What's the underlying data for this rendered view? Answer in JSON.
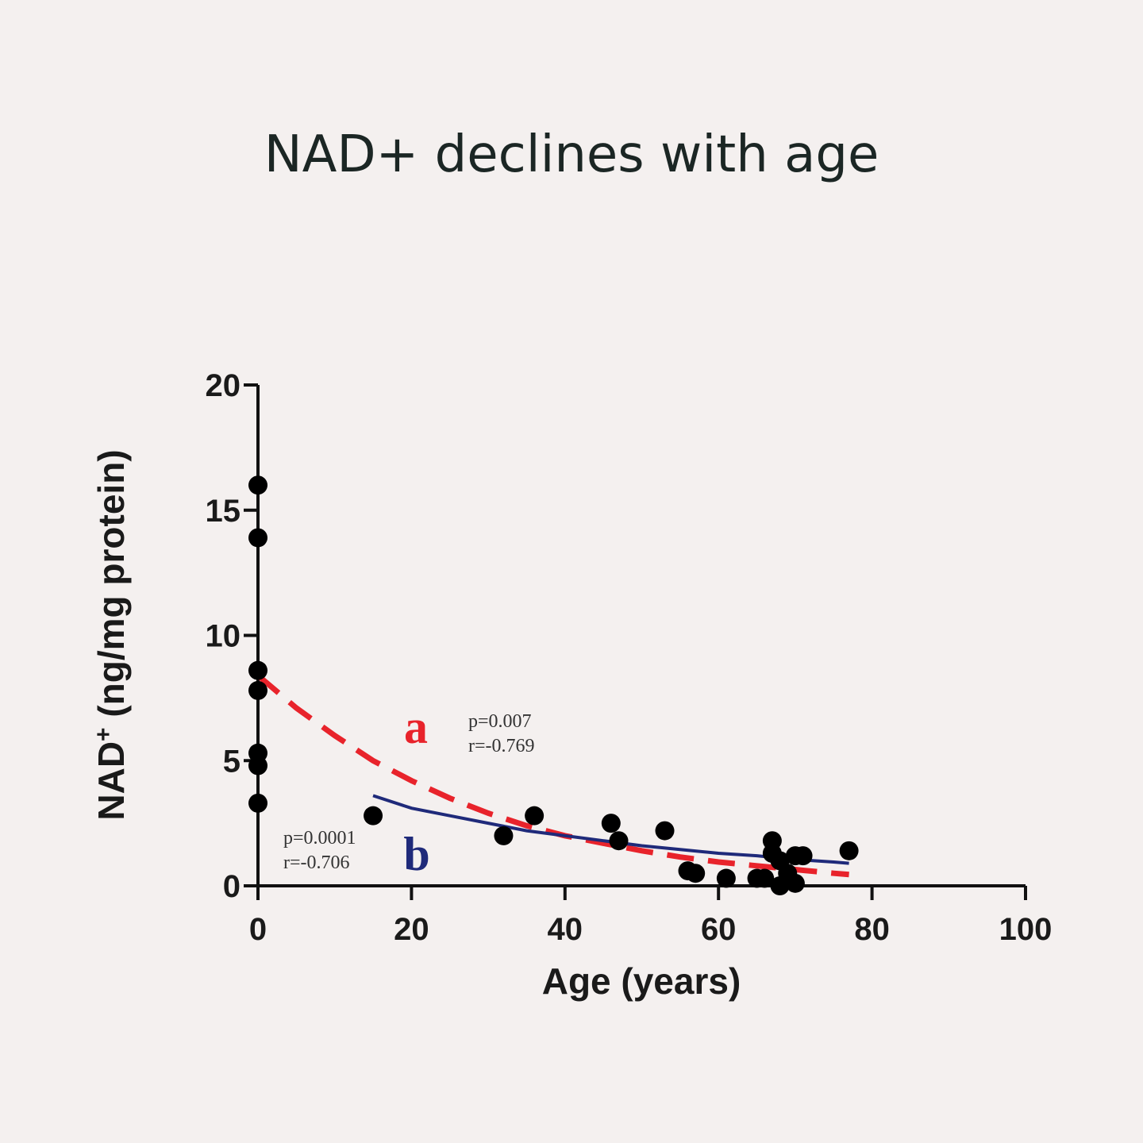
{
  "title": "NAD+ declines with age",
  "chart_data": {
    "type": "scatter",
    "xlabel": "Age (years)",
    "ylabel_main": "NAD",
    "ylabel_sup": "+",
    "ylabel_rest": " (ng/mg protein)",
    "xlim": [
      0,
      100
    ],
    "ylim": [
      0,
      20
    ],
    "xticks": [
      0,
      20,
      40,
      60,
      80,
      100
    ],
    "yticks": [
      0,
      5,
      10,
      15,
      20
    ],
    "grid": false,
    "points": [
      {
        "x": 0,
        "y": 16.0
      },
      {
        "x": 0,
        "y": 13.9
      },
      {
        "x": 0,
        "y": 8.6
      },
      {
        "x": 0,
        "y": 7.8
      },
      {
        "x": 0,
        "y": 5.3
      },
      {
        "x": 0,
        "y": 4.8
      },
      {
        "x": 0,
        "y": 3.3
      },
      {
        "x": 15,
        "y": 2.8
      },
      {
        "x": 32,
        "y": 2.0
      },
      {
        "x": 36,
        "y": 2.8
      },
      {
        "x": 46,
        "y": 2.5
      },
      {
        "x": 47,
        "y": 1.8
      },
      {
        "x": 53,
        "y": 2.2
      },
      {
        "x": 56,
        "y": 0.6
      },
      {
        "x": 57,
        "y": 0.5
      },
      {
        "x": 61,
        "y": 0.3
      },
      {
        "x": 65,
        "y": 0.3
      },
      {
        "x": 66,
        "y": 0.3
      },
      {
        "x": 67,
        "y": 1.8
      },
      {
        "x": 67,
        "y": 1.3
      },
      {
        "x": 68,
        "y": 0.0
      },
      {
        "x": 68,
        "y": 1.0
      },
      {
        "x": 69,
        "y": 0.5
      },
      {
        "x": 70,
        "y": 0.1
      },
      {
        "x": 70,
        "y": 1.2
      },
      {
        "x": 71,
        "y": 1.2
      },
      {
        "x": 77,
        "y": 1.4
      }
    ],
    "series": [
      {
        "name": "a",
        "style": "dashed",
        "color": "#e8232b",
        "x": [
          0,
          5,
          10,
          15,
          20,
          25,
          30,
          35,
          40,
          45,
          50,
          55,
          60,
          65,
          70,
          75,
          77
        ],
        "y": [
          8.4,
          7.1,
          6.0,
          5.0,
          4.2,
          3.5,
          2.9,
          2.4,
          2.0,
          1.7,
          1.4,
          1.15,
          0.95,
          0.8,
          0.65,
          0.5,
          0.45
        ],
        "stats": [
          "p=0.007",
          "r=-0.769"
        ]
      },
      {
        "name": "b",
        "style": "solid",
        "color": "#1f2a7a",
        "x": [
          15,
          20,
          25,
          30,
          35,
          40,
          45,
          50,
          55,
          60,
          65,
          70,
          75,
          77
        ],
        "y": [
          3.6,
          3.1,
          2.8,
          2.5,
          2.2,
          2.0,
          1.8,
          1.6,
          1.45,
          1.3,
          1.2,
          1.05,
          0.95,
          0.9
        ],
        "stats": [
          "p=0.0001",
          "r=-0.706"
        ]
      }
    ]
  }
}
